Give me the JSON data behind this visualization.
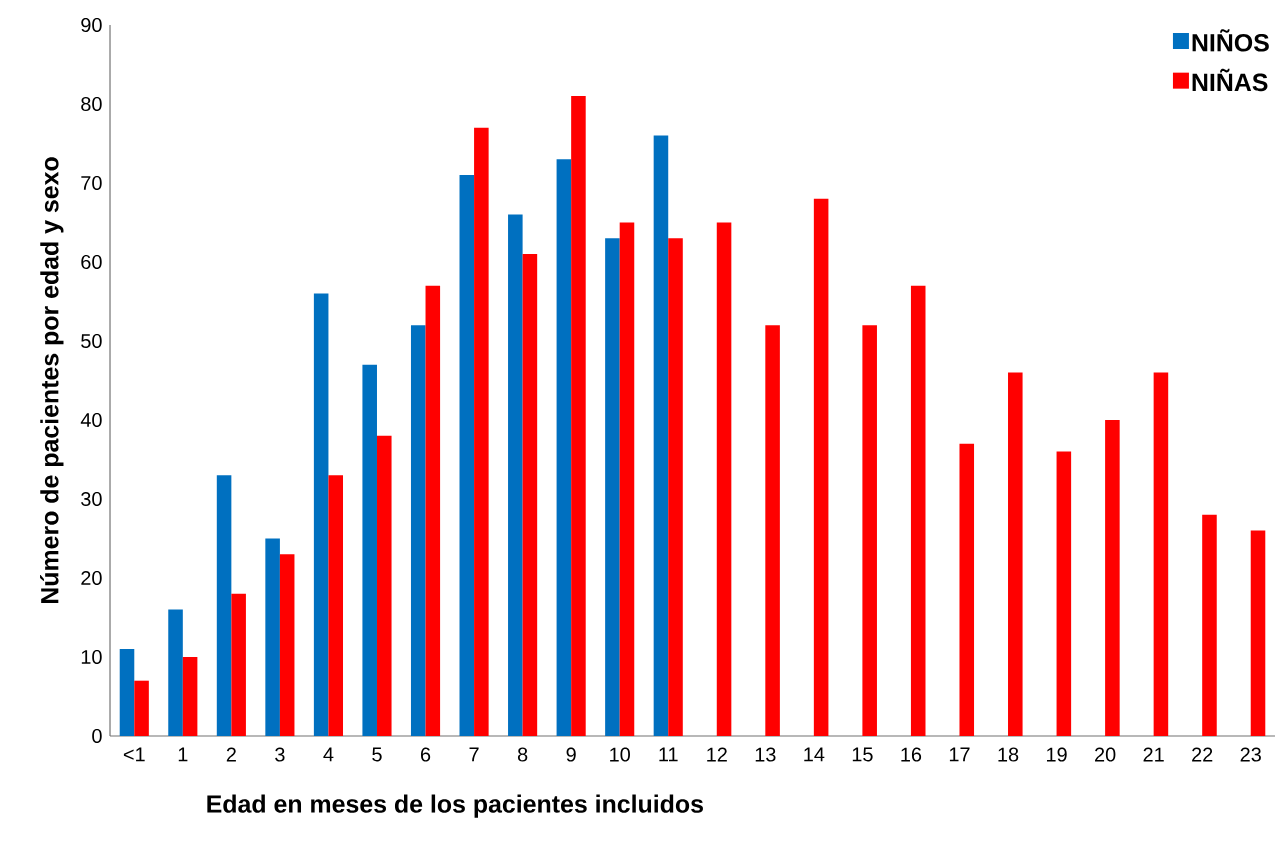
{
  "chart_data": {
    "type": "bar",
    "xlabel": "Edad en meses de los pacientes incluidos",
    "ylabel": "Número de pacientes  por edad y sexo",
    "categories": [
      "<1",
      "1",
      "2",
      "3",
      "4",
      "5",
      "6",
      "7",
      "8",
      "9",
      "10",
      "11",
      "12",
      "13",
      "14",
      "15",
      "16",
      "17",
      "18",
      "19",
      "20",
      "21",
      "22",
      "23"
    ],
    "series": [
      {
        "name": "NIÑOS",
        "color": "#0070c0",
        "values": [
          11,
          16,
          33,
          25,
          56,
          47,
          52,
          71,
          66,
          73,
          63,
          76,
          null,
          null,
          null,
          null,
          null,
          null,
          null,
          null,
          null,
          null,
          null,
          null
        ]
      },
      {
        "name": "NIÑAS",
        "color": "#ff0000",
        "values": [
          7,
          10,
          18,
          23,
          33,
          38,
          57,
          77,
          61,
          81,
          65,
          63,
          65,
          52,
          68,
          52,
          57,
          37,
          46,
          36,
          40,
          46,
          28,
          26
        ]
      }
    ],
    "ylim": [
      0,
      90
    ],
    "yticks": [
      0,
      10,
      20,
      30,
      40,
      50,
      60,
      70,
      80,
      90
    ],
    "legend": "top right"
  }
}
